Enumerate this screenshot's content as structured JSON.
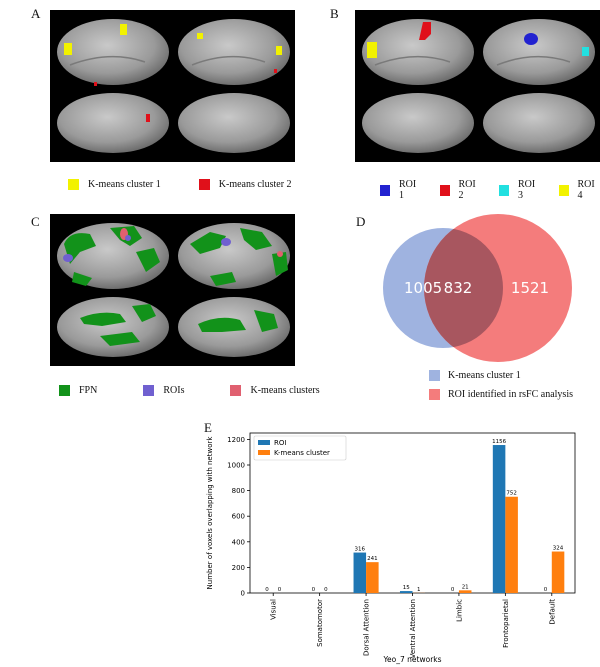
{
  "panels": {
    "A": {
      "letter": "A",
      "legend": [
        {
          "label": "K-means cluster 1",
          "color": "#f2f200"
        },
        {
          "label": "K-means cluster 2",
          "color": "#e0101a"
        }
      ]
    },
    "B": {
      "letter": "B",
      "legend": [
        {
          "label": "ROI 1",
          "color": "#2222d0"
        },
        {
          "label": "ROI 2",
          "color": "#e0101a"
        },
        {
          "label": "ROI 3",
          "color": "#22e0e0"
        },
        {
          "label": "ROI 4",
          "color": "#f2f200"
        }
      ]
    },
    "C": {
      "letter": "C",
      "legend": [
        {
          "label": "FPN",
          "color": "#12921a"
        },
        {
          "label": "ROIs",
          "color": "#7060d0"
        },
        {
          "label": "K-means clusters",
          "color": "#e06070"
        }
      ]
    },
    "D": {
      "letter": "D",
      "venn": {
        "left_only": "1005",
        "overlap": "832",
        "right_only": "1521",
        "left_color": "#9fb3e0",
        "right_color": "#f47c7c",
        "overlap_color": "#a8565f"
      },
      "legend": [
        {
          "label": "K-means cluster 1",
          "color": "#9fb3e0"
        },
        {
          "label": "ROI identified in rsFC analysis",
          "color": "#f47c7c"
        }
      ]
    },
    "E": {
      "letter": "E"
    }
  },
  "chart_data": {
    "type": "bar",
    "categories": [
      "Visual",
      "Somatomotor",
      "Dorsal Attention",
      "Ventral Attention",
      "Limbic",
      "Frontoparietal",
      "Default"
    ],
    "series": [
      {
        "name": "ROI",
        "values": [
          0,
          0,
          316,
          15,
          0,
          1156,
          0
        ],
        "color": "#1f77b4"
      },
      {
        "name": "K-means cluster",
        "values": [
          0,
          0,
          241,
          1,
          21,
          752,
          324
        ],
        "color": "#ff7f0e"
      }
    ],
    "xlabel": "Yeo_7 networks",
    "ylabel": "Number of voxels overlapping with network",
    "ylim": [
      0,
      1250
    ],
    "yticks": [
      0,
      200,
      400,
      600,
      800,
      1000,
      1200
    ],
    "legend_position": "top-left",
    "grid": false
  }
}
